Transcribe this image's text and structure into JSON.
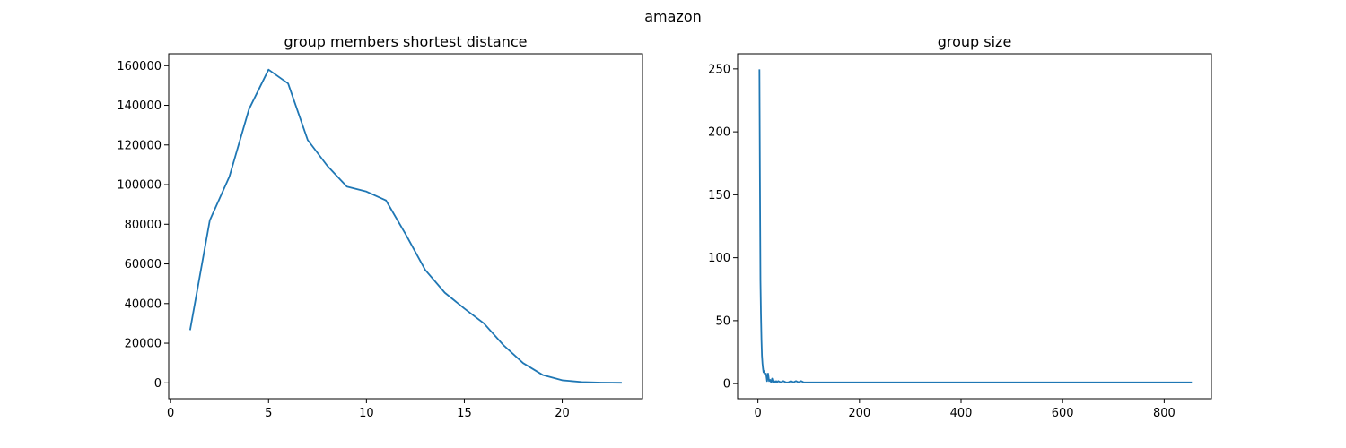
{
  "figure": {
    "suptitle": "amazon"
  },
  "chart_data": [
    {
      "type": "line",
      "title": "group members shortest distance",
      "xlabel": "",
      "ylabel": "",
      "xlim": [
        -0.1,
        24.1
      ],
      "ylim": [
        -8000,
        166000
      ],
      "xticks": [
        0,
        5,
        10,
        15,
        20
      ],
      "yticks": [
        0,
        20000,
        40000,
        60000,
        80000,
        100000,
        120000,
        140000,
        160000
      ],
      "grid": false,
      "color": "#1f77b4",
      "series": [
        {
          "x": [
            1,
            2,
            3,
            4,
            5,
            6,
            7,
            8,
            9,
            10,
            11,
            12,
            13,
            14,
            15,
            16,
            17,
            18,
            19,
            20,
            21,
            22,
            23
          ],
          "y": [
            27000,
            82000,
            104000,
            138000,
            158000,
            151000,
            122500,
            109500,
            99000,
            96500,
            92000,
            75000,
            57000,
            45500,
            37500,
            30000,
            19000,
            10000,
            4000,
            1300,
            400,
            150,
            50
          ]
        }
      ]
    },
    {
      "type": "line",
      "title": "group size",
      "xlabel": "",
      "ylabel": "",
      "xlim": [
        -40,
        893
      ],
      "ylim": [
        -12,
        262
      ],
      "xticks": [
        0,
        200,
        400,
        600,
        800
      ],
      "yticks": [
        0,
        50,
        100,
        150,
        200,
        250
      ],
      "grid": false,
      "color": "#1f77b4",
      "series": [
        {
          "x": [
            3,
            4,
            5,
            6,
            7,
            8,
            9,
            10,
            11,
            12,
            14,
            16,
            18,
            20,
            22,
            24,
            26,
            28,
            30,
            32,
            34,
            36,
            38,
            40,
            45,
            50,
            55,
            60,
            65,
            70,
            75,
            80,
            85,
            90,
            100,
            150,
            200,
            300,
            400,
            500,
            600,
            700,
            800,
            853
          ],
          "y": [
            249,
            160,
            82,
            55,
            35,
            22,
            16,
            12,
            9,
            10,
            7,
            8,
            2,
            8,
            2,
            3,
            1,
            4,
            1,
            2,
            1,
            2,
            1,
            2,
            1,
            2,
            1,
            1,
            2,
            1,
            2,
            1,
            2,
            1,
            1,
            1,
            1,
            1,
            1,
            1,
            1,
            1,
            1,
            1
          ]
        }
      ]
    }
  ]
}
